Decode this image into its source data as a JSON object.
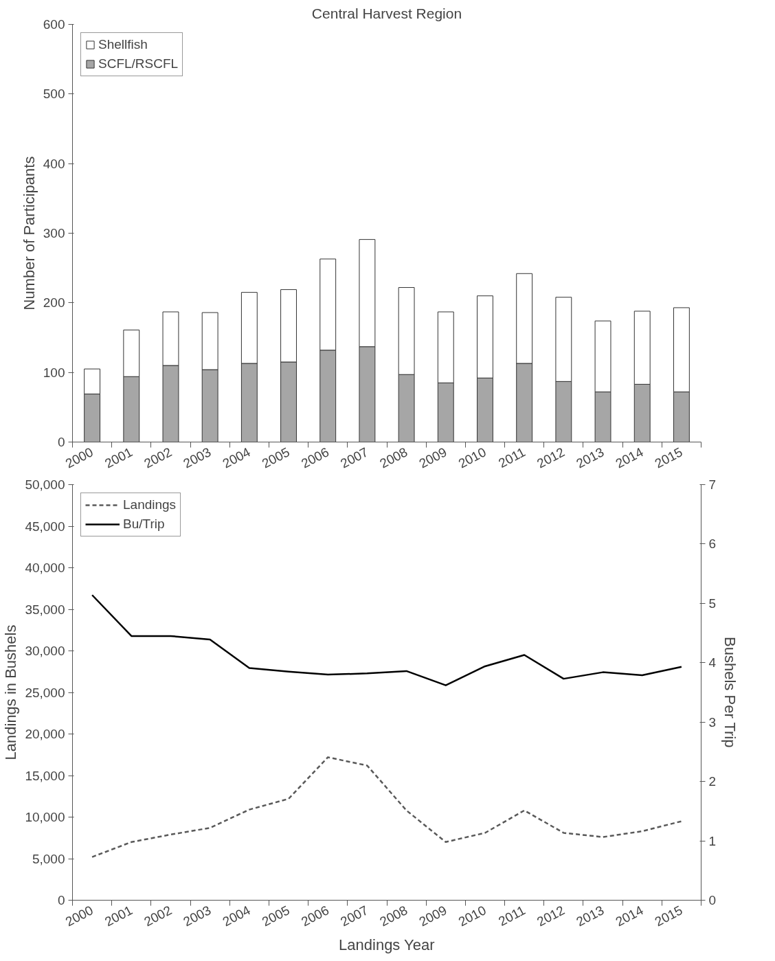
{
  "chart_data": [
    {
      "type": "bar",
      "title": "Central Harvest Region",
      "ylabel": "Number of Participants",
      "stacked": true,
      "legend": "top left",
      "grid": false,
      "categories": [
        "2000",
        "2001",
        "2002",
        "2003",
        "2004",
        "2005",
        "2006",
        "2007",
        "2008",
        "2009",
        "2010",
        "2011",
        "2012",
        "2013",
        "2014",
        "2015"
      ],
      "series": [
        {
          "name": "SCFL/RSCFL",
          "color": "#a6a6a6",
          "values": [
            69,
            94,
            110,
            104,
            113,
            115,
            132,
            137,
            97,
            85,
            92,
            113,
            87,
            72,
            83,
            72
          ]
        },
        {
          "name": "Shellfish",
          "color": "#ffffff",
          "values": [
            36,
            67,
            77,
            82,
            102,
            104,
            131,
            154,
            125,
            102,
            118,
            129,
            121,
            102,
            105,
            121
          ]
        }
      ],
      "ylim": [
        0,
        600
      ],
      "yticks": [
        0,
        100,
        200,
        300,
        400,
        500,
        600
      ]
    },
    {
      "type": "line",
      "xlabel": "Landings Year",
      "ylabel": "Landings in Bushels",
      "y2label": "Bushels Per Trip",
      "legend": "top left",
      "grid": false,
      "categories": [
        "2000",
        "2001",
        "2002",
        "2003",
        "2004",
        "2005",
        "2006",
        "2007",
        "2008",
        "2009",
        "2010",
        "2011",
        "2012",
        "2013",
        "2014",
        "2015"
      ],
      "series": [
        {
          "name": "Landings",
          "color": "#595959",
          "line_style": "dashed",
          "values": [
            5200,
            7000,
            7900,
            8700,
            10900,
            12200,
            17200,
            16200,
            10800,
            7000,
            8100,
            10800,
            8100,
            7600,
            8300,
            9500
          ]
        },
        {
          "name": "Bu/Trip",
          "color": "#000000",
          "line_style": "solid",
          "axis": "y2",
          "values": [
            5.14,
            4.45,
            4.45,
            4.39,
            3.91,
            3.85,
            3.8,
            3.82,
            3.86,
            3.62,
            3.94,
            4.13,
            3.73,
            3.84,
            3.79,
            3.93
          ]
        }
      ],
      "ylim": [
        0,
        50000
      ],
      "yticks": [
        0,
        {
          "value": 5000,
          "label": "5,000"
        },
        {
          "value": 10000,
          "label": "10,000"
        },
        {
          "value": 15000,
          "label": "15,000"
        },
        {
          "value": 20000,
          "label": "20,000"
        },
        {
          "value": 25000,
          "label": "25,000"
        },
        {
          "value": 30000,
          "label": "30,000"
        },
        {
          "value": 35000,
          "label": "35,000"
        },
        {
          "value": 40000,
          "label": "40,000"
        },
        {
          "value": 45000,
          "label": "45,000"
        },
        {
          "value": 50000,
          "label": "50,000"
        }
      ],
      "y2lim": [
        0,
        7
      ],
      "y2ticks": [
        0,
        1,
        2,
        3,
        4,
        5,
        6,
        7
      ]
    }
  ]
}
